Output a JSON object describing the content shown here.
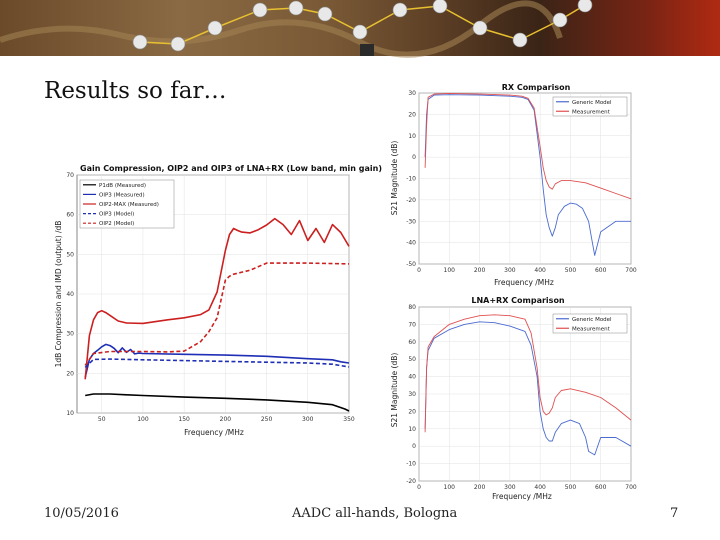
{
  "slide": {
    "title": "Results so far…",
    "footer_date": "10/05/2016",
    "footer_center": "AADC all-hands, Bologna",
    "page_number": "7"
  },
  "colors": {
    "black": "#000000",
    "red": "#cc1f1f",
    "blue": "#1f2fb5",
    "sim_blue": "#4a6ad0",
    "sim_red": "#e05050"
  },
  "chart_data": [
    {
      "id": "gain",
      "type": "line",
      "title": "Gain Compression, OIP2 and OIP3 of LNA+RX (Low band, min gain)",
      "xlabel": "Frequency /MHz",
      "ylabel": "1dB Compression and IMD (output) /dB",
      "xlim": [
        20,
        350
      ],
      "ylim": [
        10,
        70
      ],
      "xticks": [
        50,
        100,
        150,
        200,
        250,
        300,
        350
      ],
      "yticks": [
        10,
        20,
        30,
        40,
        50,
        60,
        70
      ],
      "legend_position": "top-left",
      "series": [
        {
          "name": "P1dB (Measured)",
          "color": "#000000",
          "dash": false,
          "x": [
            30,
            40,
            60,
            80,
            100,
            150,
            200,
            250,
            300,
            330,
            345,
            350
          ],
          "y": [
            14.4,
            14.8,
            14.8,
            14.6,
            14.4,
            14.0,
            13.7,
            13.3,
            12.7,
            12.1,
            11.0,
            10.5
          ]
        },
        {
          "name": "OIP3 (Measured)",
          "color": "#1f2fb5",
          "dash": false,
          "x": [
            30,
            35,
            40,
            45,
            50,
            55,
            60,
            65,
            70,
            75,
            80,
            85,
            90,
            95,
            100,
            150,
            200,
            250,
            300,
            330,
            340,
            350
          ],
          "y": [
            19,
            23.5,
            25.0,
            25.8,
            26.7,
            27.3,
            27.0,
            26.3,
            25.2,
            26.4,
            25.3,
            26.0,
            24.9,
            25.1,
            25.0,
            24.8,
            24.6,
            24.3,
            23.7,
            23.4,
            22.9,
            22.6
          ]
        },
        {
          "name": "OIP2-MAX (Measured)",
          "color": "#cc1f1f",
          "dash": false,
          "x": [
            30,
            35,
            40,
            45,
            50,
            55,
            60,
            70,
            80,
            100,
            130,
            150,
            170,
            180,
            190,
            200,
            205,
            210,
            215,
            220,
            230,
            240,
            250,
            260,
            270,
            280,
            290,
            300,
            310,
            320,
            330,
            340,
            350
          ],
          "y": [
            18.5,
            29.5,
            33.5,
            35.3,
            35.8,
            35.3,
            34.6,
            33.2,
            32.7,
            32.6,
            33.5,
            34.0,
            34.8,
            36.0,
            40.5,
            51.0,
            55.0,
            56.5,
            56.0,
            55.6,
            55.4,
            56.2,
            57.4,
            59.0,
            57.5,
            55.0,
            58.5,
            53.5,
            56.5,
            53.0,
            57.5,
            55.5,
            52.0
          ]
        },
        {
          "name": "OIP3 (Model)",
          "color": "#1f2fb5",
          "dash": true,
          "x": [
            30,
            40,
            60,
            80,
            100,
            150,
            200,
            250,
            300,
            330,
            350
          ],
          "y": [
            21.5,
            23.5,
            23.6,
            23.5,
            23.4,
            23.2,
            23.0,
            22.8,
            22.6,
            22.3,
            21.6
          ]
        },
        {
          "name": "OIP2 (Model)",
          "color": "#cc1f1f",
          "dash": true,
          "x": [
            30,
            40,
            60,
            100,
            130,
            150,
            170,
            180,
            190,
            200,
            205,
            210,
            230,
            250,
            300,
            350
          ],
          "y": [
            22.0,
            25.0,
            25.5,
            25.5,
            25.4,
            25.6,
            28.0,
            30.5,
            34.0,
            43.5,
            44.5,
            45.0,
            46.0,
            47.8,
            47.8,
            47.6
          ]
        }
      ]
    },
    {
      "id": "rx",
      "type": "line",
      "title": "RX Comparison",
      "xlabel": "Frequency /MHz",
      "ylabel": "S21 Magnitude (dB)",
      "xlim": [
        0,
        700
      ],
      "ylim": [
        -50,
        30
      ],
      "xticks": [
        0,
        100,
        200,
        300,
        400,
        500,
        600,
        700
      ],
      "yticks": [
        30,
        20,
        10,
        0,
        -10,
        -20,
        -30,
        -40,
        -50
      ],
      "legend_position": "top-right",
      "series": [
        {
          "name": "Generic Model",
          "color": "#4a6ad0",
          "dash": false,
          "x": [
            20,
            25,
            30,
            50,
            100,
            200,
            300,
            340,
            360,
            380,
            400,
            410,
            420,
            430,
            440,
            450,
            460,
            470,
            480,
            500,
            520,
            540,
            560,
            570,
            580,
            600,
            650,
            700
          ],
          "y": [
            0,
            20,
            27,
            29,
            29.2,
            29,
            28.5,
            28,
            27,
            22,
            0,
            -15,
            -27,
            -33,
            -37,
            -33,
            -27,
            -25,
            -23,
            -21.5,
            -22,
            -24,
            -30,
            -38,
            -46,
            -35,
            -30,
            -30
          ]
        },
        {
          "name": "Measurement",
          "color": "#e05050",
          "dash": false,
          "x": [
            20,
            25,
            30,
            50,
            100,
            200,
            300,
            340,
            360,
            380,
            400,
            410,
            420,
            430,
            440,
            450,
            470,
            500,
            550,
            600,
            650,
            700
          ],
          "y": [
            -5,
            15,
            28,
            29.5,
            29.8,
            29.5,
            29,
            28.5,
            27.5,
            23,
            5,
            -5,
            -11,
            -14,
            -15,
            -12.5,
            -11,
            -11,
            -12,
            -14.5,
            -17,
            -19.5
          ]
        }
      ]
    },
    {
      "id": "lnarx",
      "type": "line",
      "title": "LNA+RX Comparison",
      "xlabel": "Frequency /MHz",
      "ylabel": "S21 Magnitude (dB)",
      "xlim": [
        0,
        700
      ],
      "ylim": [
        -20,
        80
      ],
      "xticks": [
        0,
        100,
        200,
        300,
        400,
        500,
        600,
        700
      ],
      "yticks": [
        80,
        70,
        60,
        50,
        40,
        30,
        20,
        10,
        0,
        -10,
        -20
      ],
      "legend_position": "top-right",
      "series": [
        {
          "name": "Generic Model",
          "color": "#4a6ad0",
          "dash": false,
          "x": [
            20,
            25,
            30,
            50,
            100,
            150,
            200,
            250,
            300,
            350,
            370,
            390,
            400,
            410,
            420,
            430,
            440,
            450,
            470,
            500,
            530,
            550,
            560,
            580,
            600,
            650,
            700
          ],
          "y": [
            10,
            45,
            55,
            62,
            67,
            70,
            71.5,
            71,
            69,
            66,
            58,
            40,
            20,
            10,
            5,
            3,
            3,
            8,
            13,
            15,
            13,
            5,
            -3,
            -5,
            5,
            5,
            0
          ]
        },
        {
          "name": "Measurement",
          "color": "#e05050",
          "dash": false,
          "x": [
            20,
            25,
            30,
            50,
            100,
            150,
            200,
            250,
            300,
            350,
            370,
            390,
            400,
            410,
            420,
            430,
            440,
            450,
            470,
            500,
            550,
            600,
            650,
            700
          ],
          "y": [
            8,
            45,
            57,
            63,
            70,
            73,
            75,
            75.5,
            75,
            73,
            65,
            45,
            28,
            20,
            18,
            19,
            22,
            28,
            32,
            33,
            31,
            28,
            22,
            15
          ]
        }
      ]
    }
  ]
}
